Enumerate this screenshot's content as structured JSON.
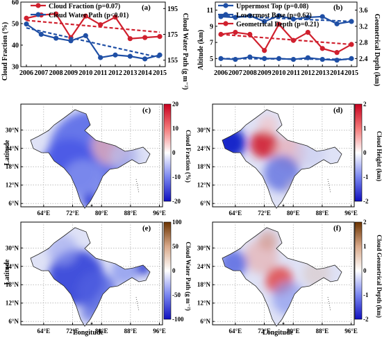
{
  "chart_data": [
    {
      "panel": "(a)",
      "type": "line",
      "x": [
        2006,
        2007,
        2008,
        2009,
        2010,
        2011,
        2012,
        2013,
        2014,
        2015
      ],
      "x_ticks": [
        "2006",
        "2007",
        "2008",
        "2009",
        "2010",
        "2011",
        "2012",
        "2013",
        "2014",
        "2015"
      ],
      "ylabel_left": "Cloud Fraction (%)",
      "ylabel_right": "Cloud Water Path (g m⁻²)",
      "ylim_left": [
        30,
        60
      ],
      "yticks_left": [
        "30",
        "40",
        "50",
        "60"
      ],
      "ylim_right": [
        150,
        200
      ],
      "yticks_right": [
        "155",
        "175",
        "195"
      ],
      "legend_position": "top-left",
      "series": [
        {
          "name": "Cloud Fraction (p=0.07)",
          "axis": "left",
          "color": "#d0202e",
          "values": [
            52.5,
            54,
            54.5,
            43.5,
            53.5,
            49.5,
            53,
            43,
            43.5,
            null
          ],
          "values_2015": 44,
          "trend": [
            51.5,
            46
          ]
        },
        {
          "name": "Cloud Water Path (p<0.01)",
          "axis": "right",
          "color": "#1f4fa5",
          "values": [
            183,
            175,
            172,
            170,
            174,
            157,
            159,
            158,
            156,
            159
          ],
          "trend": [
            180,
            157
          ]
        }
      ]
    },
    {
      "panel": "(b)",
      "type": "line",
      "x": [
        2006,
        2007,
        2008,
        2009,
        2010,
        2011,
        2012,
        2013,
        2014,
        2015
      ],
      "x_ticks": [
        "2006",
        "2007",
        "2008",
        "2009",
        "2010",
        "2011",
        "2012",
        "2013",
        "2014",
        "2015"
      ],
      "ylabel_left": "Altitude (km)",
      "ylabel_right": "Geometrical Depth (km)",
      "ylim_left": [
        4,
        12
      ],
      "yticks_left": [
        "5",
        "7",
        "9",
        "11"
      ],
      "ylim_right": [
        2.2,
        3.8
      ],
      "yticks_right": [
        "2.4",
        "2.8",
        "3.2",
        "3.6"
      ],
      "legend_position": "top-left",
      "series": [
        {
          "name": "Uppermost Top (p=0.08)",
          "axis": "left",
          "color": "#1f4fa5",
          "values": [
            10.2,
            10.1,
            10.3,
            9.6,
            10.3,
            9.9,
            10.1,
            10.2,
            9.3,
            9.6
          ],
          "trend": [
            10.3,
            9.6
          ]
        },
        {
          "name": "Lowermost Base (p=0.62)",
          "axis": "left",
          "color": "#1f4fa5",
          "values": [
            5.0,
            4.9,
            5.2,
            5.0,
            5.0,
            4.9,
            5.1,
            4.9,
            4.8,
            5.0
          ],
          "trend": [
            5.0,
            4.9
          ]
        },
        {
          "name": "Geometrical Depth (p=0.21)",
          "axis": "right",
          "color": "#d0202e",
          "values": [
            3.0,
            3.05,
            3.0,
            2.6,
            3.25,
            2.85,
            3.05,
            2.65,
            2.55,
            2.75
          ],
          "trend": [
            3.0,
            2.75
          ]
        }
      ]
    },
    {
      "panel": "(c)",
      "type": "heatmap",
      "colorbar_label": "Cloud Fraction (%)",
      "colorbar_ticks": [
        "20",
        "10",
        "0",
        "-10",
        "-20"
      ],
      "colormap": "bwr",
      "ylabel": "Latitude",
      "lat_ticks": [
        "30°N",
        "24°N",
        "18°N",
        "12°N",
        "6°N"
      ],
      "lon_ticks": [
        "64°E",
        "72°E",
        "80°E",
        "88°E",
        "96°E"
      ]
    },
    {
      "panel": "(d)",
      "type": "heatmap",
      "colorbar_label": "Cloud Height (km)",
      "colorbar_ticks": [
        "2",
        "1",
        "0",
        "-1",
        "-2"
      ],
      "colormap": "bwr",
      "lat_ticks": [
        "30°N",
        "24°N",
        "18°N",
        "12°N",
        "6°N"
      ],
      "lon_ticks": [
        "64°E",
        "72°E",
        "80°E",
        "88°E",
        "96°E"
      ]
    },
    {
      "panel": "(e)",
      "type": "heatmap",
      "colorbar_label": "Cloud Water Path (g m⁻²)",
      "colorbar_ticks": [
        "100",
        "50",
        "0",
        "-50",
        "-100"
      ],
      "colormap": "brown-white-blue",
      "ylabel": "Latitude",
      "xlabel": "Longitude",
      "lat_ticks": [
        "30°N",
        "24°N",
        "18°N",
        "12°N",
        "6°N"
      ],
      "lon_ticks": [
        "64°E",
        "72°E",
        "80°E",
        "88°E",
        "96°E"
      ]
    },
    {
      "panel": "(f)",
      "type": "heatmap",
      "colorbar_label": "Cloud Geometrical Depth (km)",
      "colorbar_ticks": [
        "2",
        "1",
        "0",
        "-1",
        "-2"
      ],
      "colormap": "brown-white-blue",
      "xlabel": "Longitude",
      "lat_ticks": [
        "30°N",
        "24°N",
        "18°N",
        "12°N",
        "6°N"
      ],
      "lon_ticks": [
        "64°E",
        "72°E",
        "80°E",
        "88°E",
        "96°E"
      ]
    }
  ]
}
